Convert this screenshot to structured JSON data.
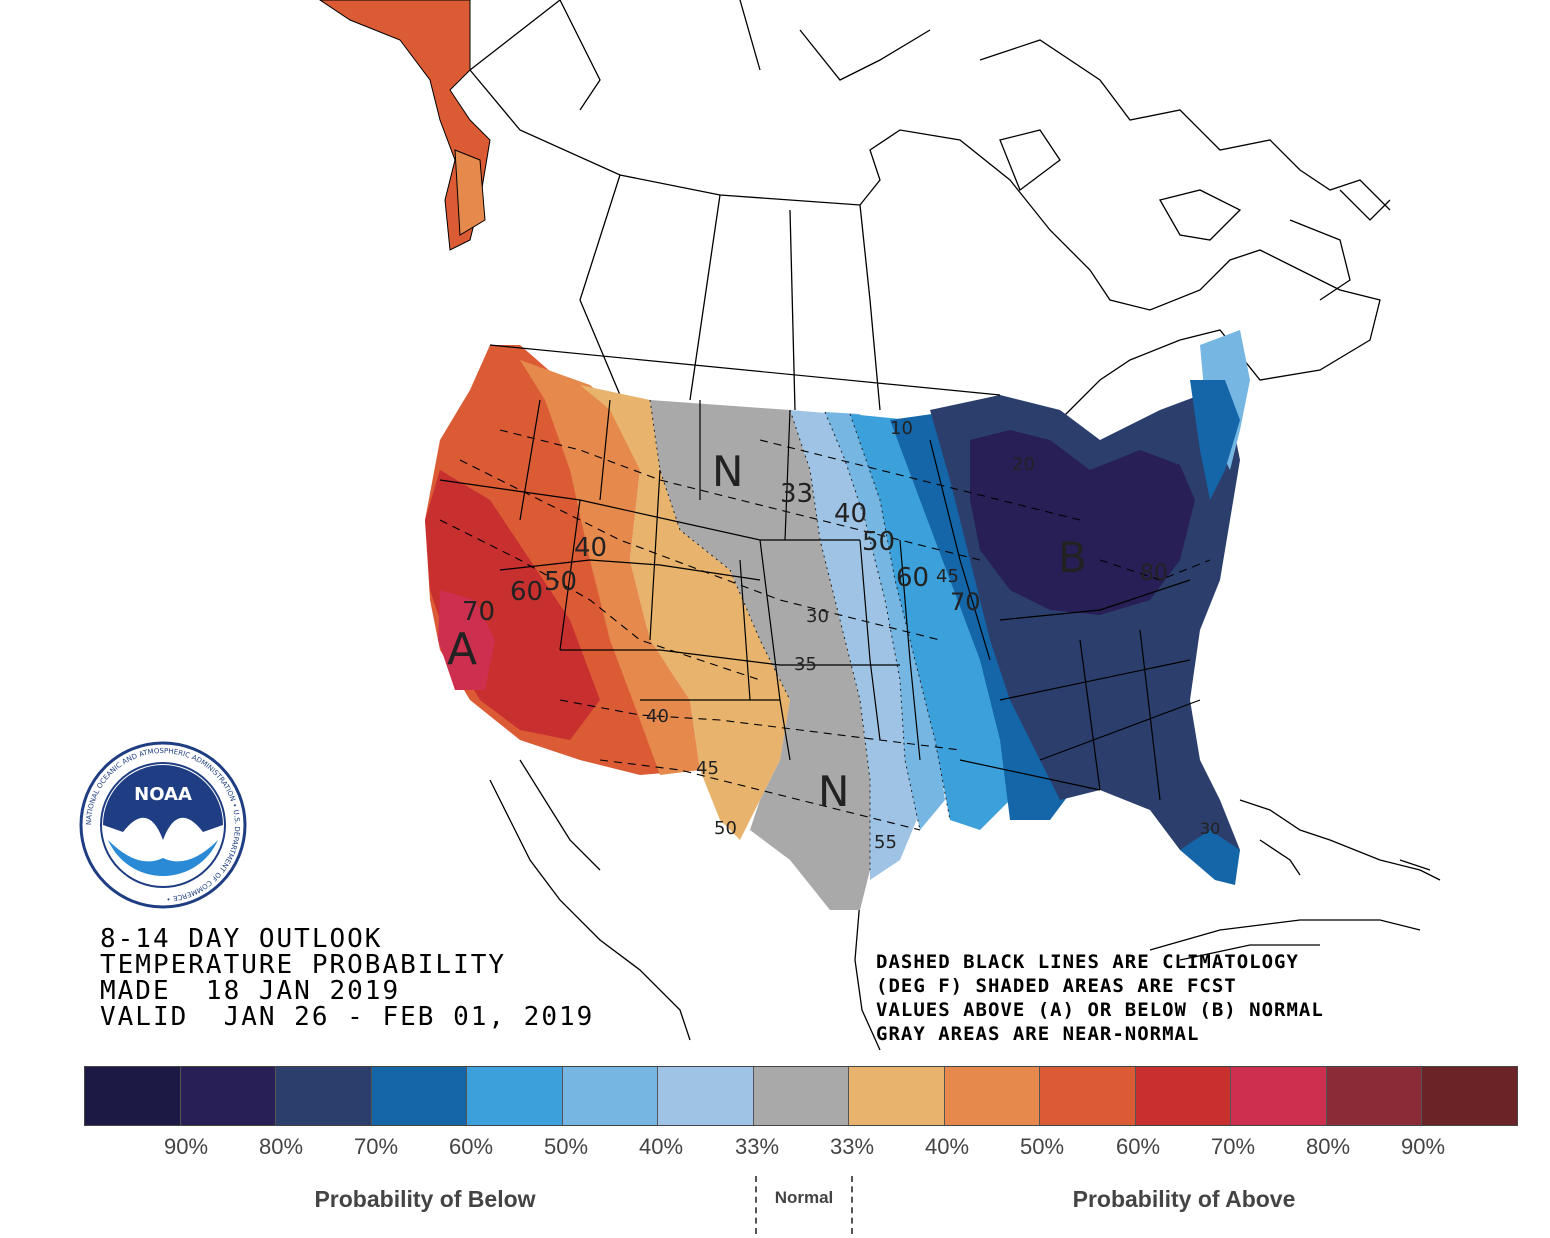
{
  "title_block": {
    "line1": "8-14 DAY OUTLOOK",
    "line2": "TEMPERATURE PROBABILITY",
    "line3": "MADE  18 JAN 2019",
    "line4": "VALID  JAN 26 - FEB 01, 2019"
  },
  "notes": {
    "line1": "DASHED BLACK LINES ARE CLIMATOLOGY",
    "line2": "(DEG F) SHADED AREAS ARE FCST",
    "line3": "VALUES ABOVE (A) OR BELOW (B) NORMAL",
    "line4": "GRAY AREAS ARE NEAR-NORMAL"
  },
  "logo": {
    "text": "NOAA",
    "ring_text": "NATIONAL OCEANIC AND ATMOSPHERIC ADMINISTRATION • U.S. DEPARTMENT OF COMMERCE •"
  },
  "region_labels": {
    "above": "A",
    "below": "B",
    "normal_north": "N",
    "normal_south": "N"
  },
  "climatology_labels": [
    "70",
    "60",
    "50",
    "40",
    "33",
    "40",
    "50",
    "60",
    "45",
    "70",
    "30",
    "35",
    "40",
    "45",
    "50",
    "55",
    "10",
    "20",
    "80",
    "30"
  ],
  "legend": {
    "colors": [
      "#1c1a45",
      "#281f57",
      "#2b3e6c",
      "#1466a9",
      "#3ca0da",
      "#76b6e3",
      "#9ec3e4",
      "#a9a9a9",
      "#e8b36c",
      "#e58a4c",
      "#db5b35",
      "#c82f2f",
      "#cd2f4f",
      "#8c2b38",
      "#6b2328"
    ],
    "below_labels": [
      "90%",
      "80%",
      "70%",
      "60%",
      "50%",
      "40%",
      "33%"
    ],
    "above_labels": [
      "33%",
      "40%",
      "50%",
      "60%",
      "70%",
      "80%",
      "90%"
    ],
    "below_caption": "Probability of Below",
    "normal_caption": "Normal",
    "above_caption": "Probability of Above"
  }
}
